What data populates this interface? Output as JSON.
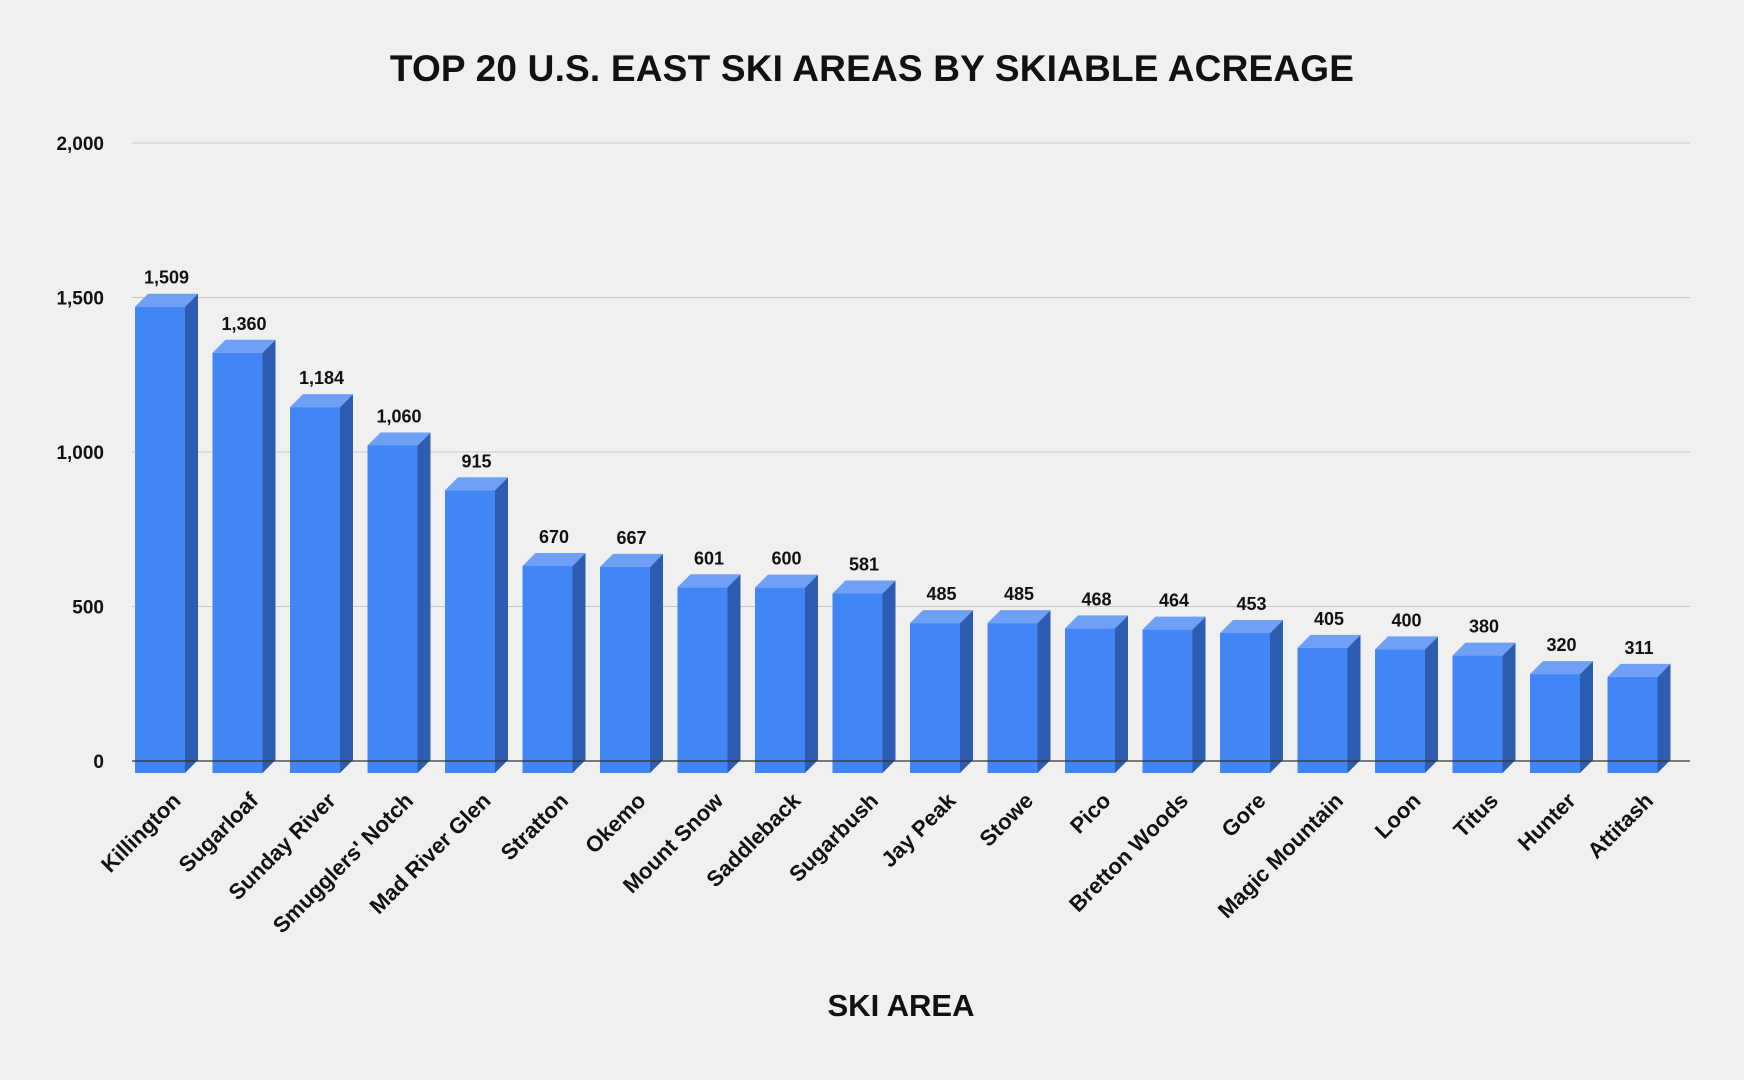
{
  "chart_data": {
    "type": "bar",
    "title": "TOP 20 U.S. EAST SKI AREAS BY SKIABLE ACREAGE",
    "xlabel": "SKI AREA",
    "ylabel": "",
    "ylim": [
      0,
      2000
    ],
    "yticks": [
      0,
      500,
      1000,
      1500,
      2000
    ],
    "ytick_labels": [
      "0",
      "500",
      "1,000",
      "1,500",
      "2,000"
    ],
    "grid": true,
    "style": "3d-bar",
    "categories": [
      "Killington",
      "Sugarloaf",
      "Sunday River",
      "Smugglers' Notch",
      "Mad River Glen",
      "Stratton",
      "Okemo",
      "Mount Snow",
      "Saddleback",
      "Sugarbush",
      "Jay Peak",
      "Stowe",
      "Pico",
      "Bretton Woods",
      "Gore",
      "Magic Mountain",
      "Loon",
      "Titus",
      "Hunter",
      "Attitash"
    ],
    "values": [
      1509,
      1360,
      1184,
      1060,
      915,
      670,
      667,
      601,
      600,
      581,
      485,
      485,
      468,
      464,
      453,
      405,
      400,
      380,
      320,
      311
    ],
    "value_labels": [
      "1,509",
      "1,360",
      "1,184",
      "1,060",
      "915",
      "670",
      "667",
      "601",
      "600",
      "581",
      "485",
      "485",
      "468",
      "464",
      "453",
      "405",
      "400",
      "380",
      "320",
      "311"
    ],
    "colors": {
      "bar_front": "#4285f4",
      "bar_top": "#6ea1f6",
      "bar_side": "#2e5cb0",
      "grid": "#c8c8c8",
      "baseline": "#333333"
    }
  }
}
